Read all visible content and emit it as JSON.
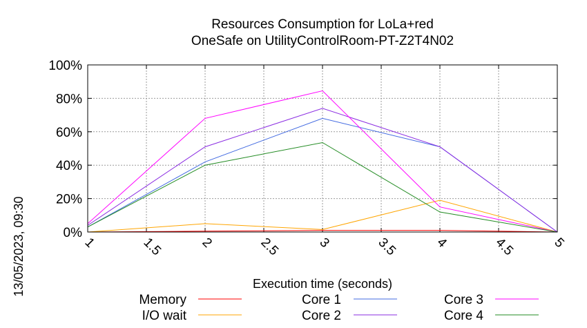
{
  "chart_data": {
    "type": "line",
    "title": "Resources Consumption for LoLa+red",
    "subtitle": "OneSafe on UtilityControlRoom-PT-Z2T4N02",
    "xlabel": "Execution time (seconds)",
    "ylabel": "",
    "side_label": "13/05/2023, 09:30",
    "xlim": [
      1,
      5
    ],
    "ylim": [
      0,
      100
    ],
    "x_ticks": [
      "1",
      "1.5",
      "2",
      "2.5",
      "3",
      "3.5",
      "4",
      "4.5",
      "5"
    ],
    "y_ticks": [
      "0%",
      "20%",
      "40%",
      "60%",
      "80%",
      "100%"
    ],
    "grid": true,
    "legend_position": "bottom",
    "x": [
      1,
      2,
      3,
      4,
      5
    ],
    "series": [
      {
        "name": "Memory",
        "color": "#ff0000",
        "values": [
          0,
          0.5,
          1,
          1,
          0
        ]
      },
      {
        "name": "I/O wait",
        "color": "#ffa500",
        "values": [
          0,
          5,
          1.5,
          19,
          0
        ]
      },
      {
        "name": "Core 1",
        "color": "#4169e1",
        "values": [
          3,
          42,
          68,
          51,
          0
        ]
      },
      {
        "name": "Core 2",
        "color": "#8a2be2",
        "values": [
          4,
          51,
          74,
          51,
          0
        ]
      },
      {
        "name": "Core 3",
        "color": "#ff00ff",
        "values": [
          5,
          68,
          84.5,
          15,
          0
        ]
      },
      {
        "name": "Core 4",
        "color": "#228b22",
        "values": [
          3,
          40,
          53.5,
          12,
          0
        ]
      }
    ]
  }
}
